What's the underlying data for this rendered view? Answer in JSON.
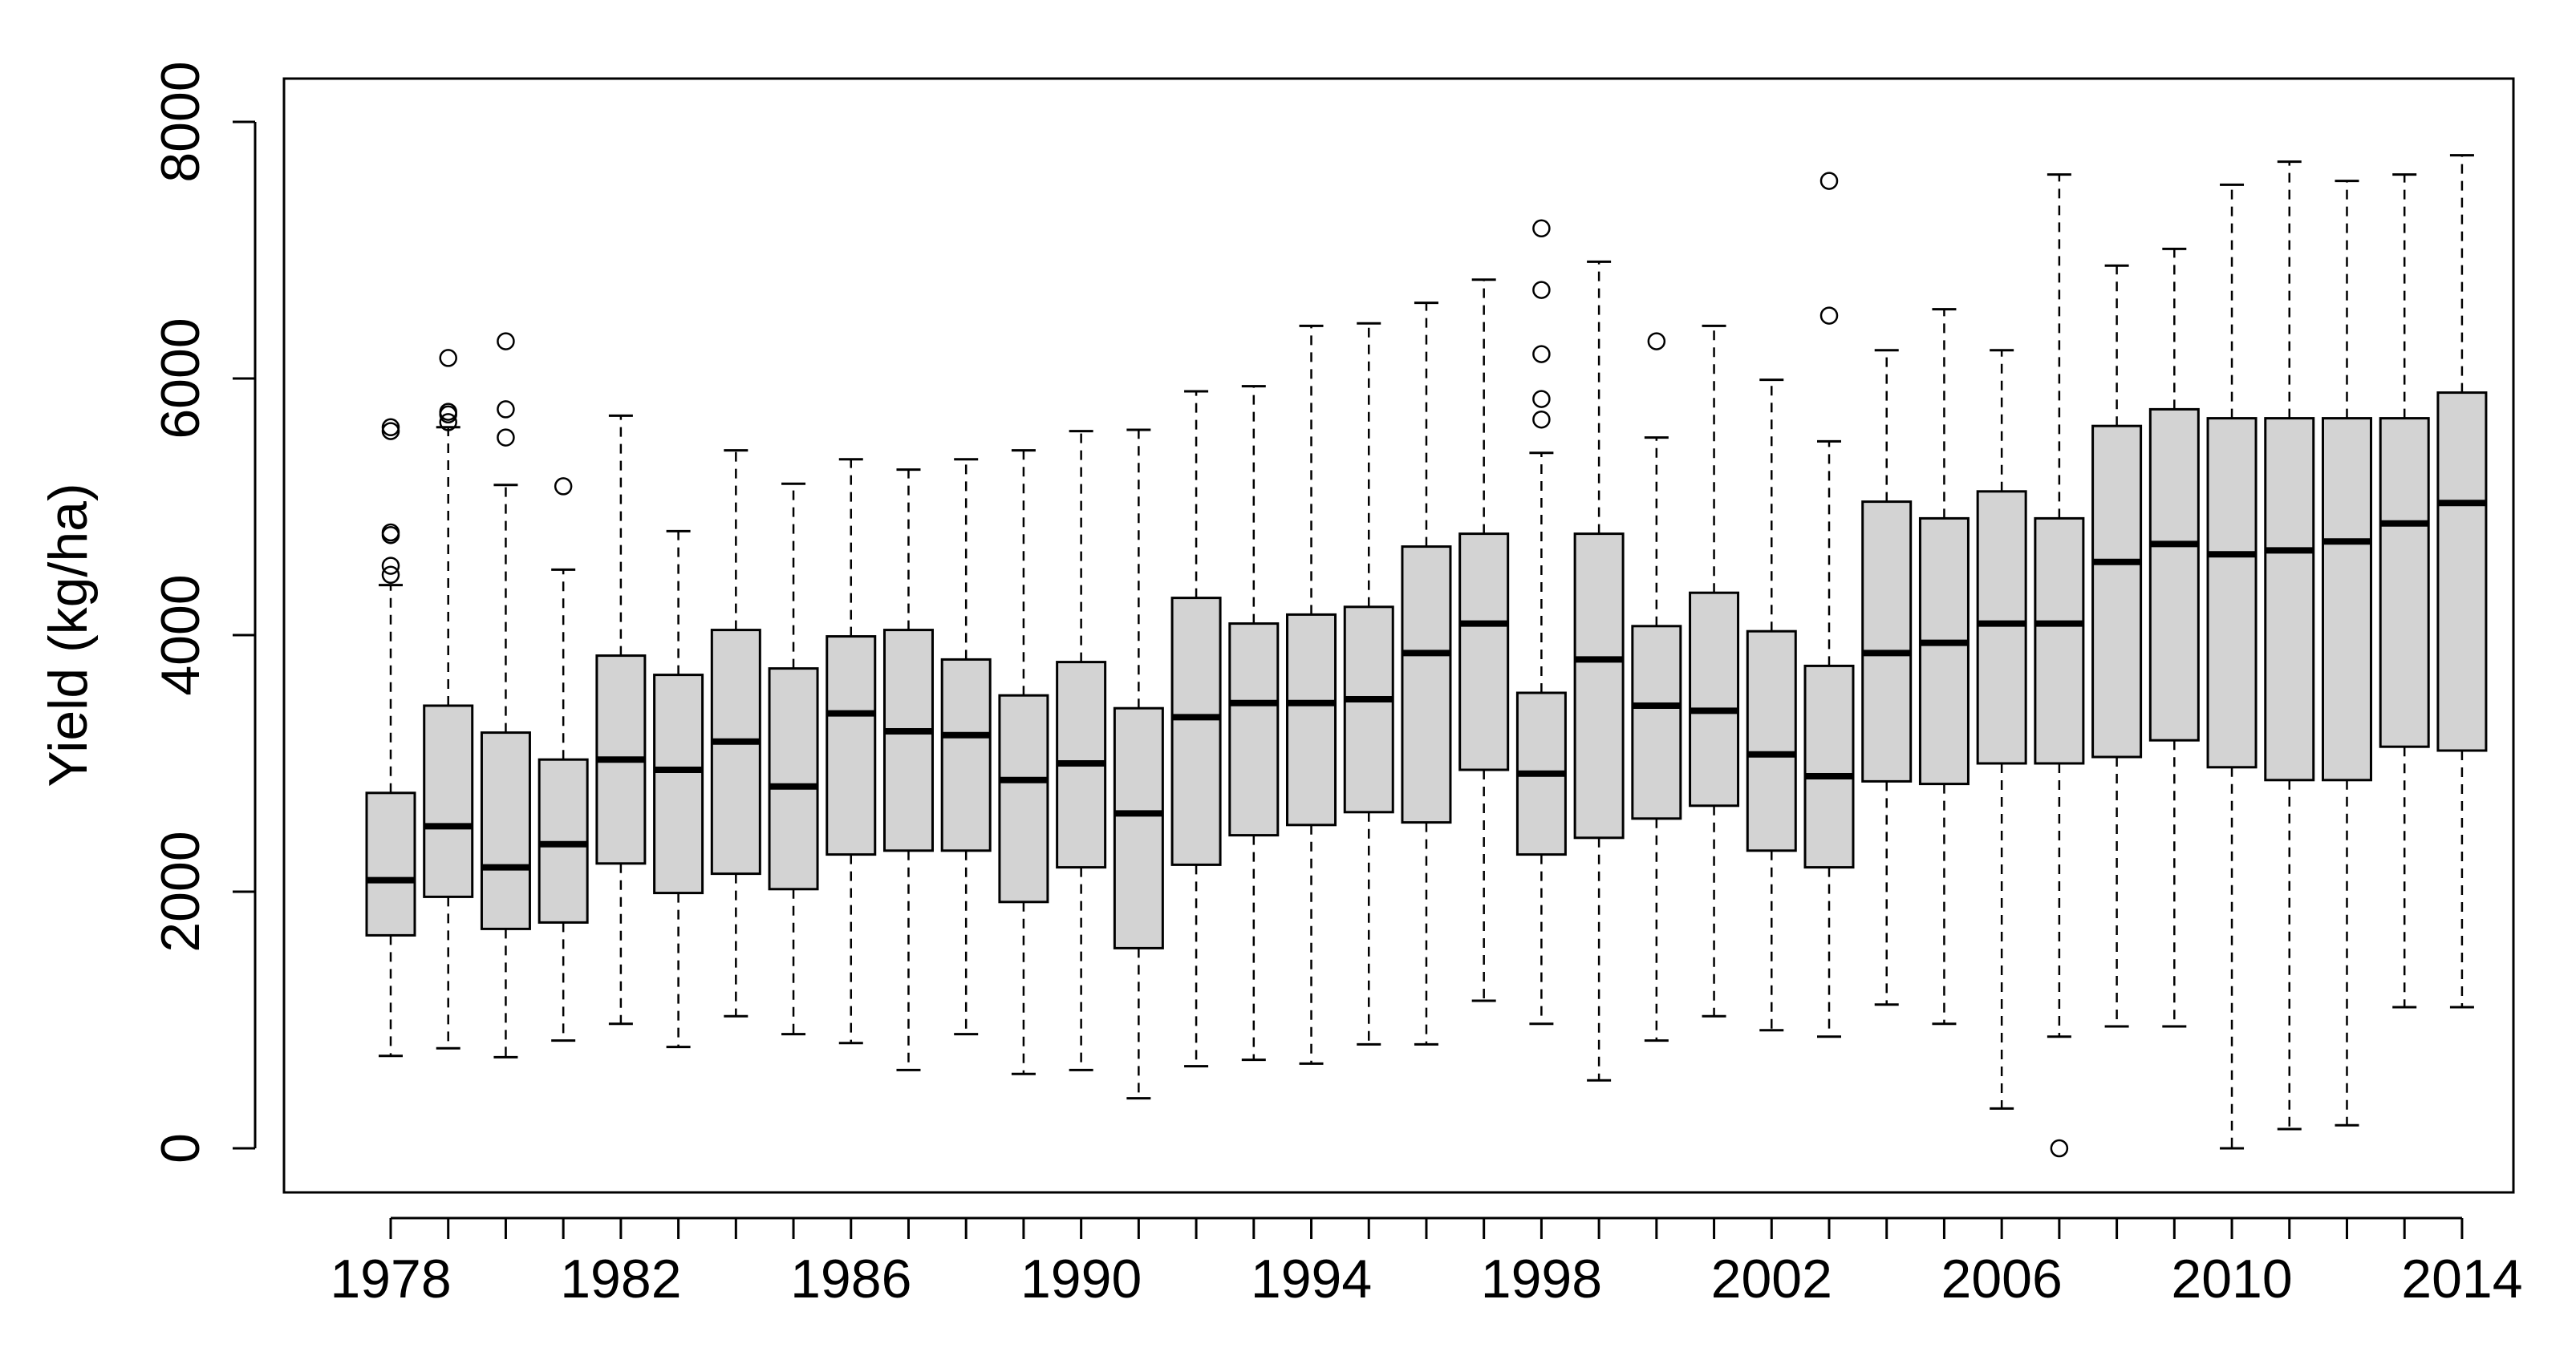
{
  "chart_data": {
    "type": "boxplot",
    "title": "",
    "xlabel": "",
    "ylabel": "Yield (kg/ha)",
    "ylim": [
      -300,
      8300
    ],
    "y_ticks": [
      0,
      2000,
      4000,
      6000,
      8000
    ],
    "x_tick_labels": [
      "1978",
      "1982",
      "1986",
      "1990",
      "1994",
      "1998",
      "2002",
      "2006",
      "2010",
      "2014"
    ],
    "box_fill": "#d3d3d3",
    "grid": false,
    "boxes": [
      {
        "year": 1978,
        "low": 720,
        "q1": 1660,
        "median": 2090,
        "q3": 2770,
        "high": 4390,
        "outliers": [
          4470,
          4540,
          4780,
          4800,
          5590,
          5620
        ]
      },
      {
        "year": 1979,
        "low": 780,
        "q1": 1960,
        "median": 2510,
        "q3": 3450,
        "high": 5620,
        "outliers": [
          5660,
          5720,
          5740,
          6160
        ]
      },
      {
        "year": 1980,
        "low": 710,
        "q1": 1710,
        "median": 2190,
        "q3": 3240,
        "high": 5170,
        "outliers": [
          5540,
          5760,
          6290
        ]
      },
      {
        "year": 1981,
        "low": 840,
        "q1": 1760,
        "median": 2370,
        "q3": 3030,
        "high": 4510,
        "outliers": [
          5160
        ]
      },
      {
        "year": 1982,
        "low": 970,
        "q1": 2220,
        "median": 3030,
        "q3": 3840,
        "high": 5710,
        "outliers": []
      },
      {
        "year": 1983,
        "low": 790,
        "q1": 1990,
        "median": 2950,
        "q3": 3690,
        "high": 4810,
        "outliers": []
      },
      {
        "year": 1984,
        "low": 1030,
        "q1": 2140,
        "median": 3170,
        "q3": 4040,
        "high": 5440,
        "outliers": []
      },
      {
        "year": 1985,
        "low": 890,
        "q1": 2020,
        "median": 2820,
        "q3": 3740,
        "high": 5180,
        "outliers": []
      },
      {
        "year": 1986,
        "low": 820,
        "q1": 2290,
        "median": 3390,
        "q3": 3990,
        "high": 5370,
        "outliers": []
      },
      {
        "year": 1987,
        "low": 610,
        "q1": 2320,
        "median": 3250,
        "q3": 4040,
        "high": 5290,
        "outliers": []
      },
      {
        "year": 1988,
        "low": 890,
        "q1": 2320,
        "median": 3220,
        "q3": 3810,
        "high": 5370,
        "outliers": []
      },
      {
        "year": 1989,
        "low": 580,
        "q1": 1920,
        "median": 2870,
        "q3": 3530,
        "high": 5440,
        "outliers": []
      },
      {
        "year": 1990,
        "low": 610,
        "q1": 2190,
        "median": 3000,
        "q3": 3790,
        "high": 5590,
        "outliers": []
      },
      {
        "year": 1991,
        "low": 390,
        "q1": 1560,
        "median": 2610,
        "q3": 3430,
        "high": 5600,
        "outliers": []
      },
      {
        "year": 1992,
        "low": 640,
        "q1": 2210,
        "median": 3360,
        "q3": 4290,
        "high": 5900,
        "outliers": []
      },
      {
        "year": 1993,
        "low": 690,
        "q1": 2440,
        "median": 3470,
        "q3": 4090,
        "high": 5940,
        "outliers": []
      },
      {
        "year": 1994,
        "low": 660,
        "q1": 2520,
        "median": 3470,
        "q3": 4160,
        "high": 6410,
        "outliers": []
      },
      {
        "year": 1995,
        "low": 810,
        "q1": 2620,
        "median": 3500,
        "q3": 4220,
        "high": 6430,
        "outliers": []
      },
      {
        "year": 1996,
        "low": 810,
        "q1": 2540,
        "median": 3860,
        "q3": 4690,
        "high": 6590,
        "outliers": []
      },
      {
        "year": 1997,
        "low": 1150,
        "q1": 2950,
        "median": 4090,
        "q3": 4790,
        "high": 6770,
        "outliers": []
      },
      {
        "year": 1998,
        "low": 970,
        "q1": 2290,
        "median": 2920,
        "q3": 3550,
        "high": 5420,
        "outliers": [
          5680,
          5840,
          6190,
          6690,
          7170
        ]
      },
      {
        "year": 1999,
        "low": 530,
        "q1": 2420,
        "median": 3810,
        "q3": 4790,
        "high": 6910,
        "outliers": []
      },
      {
        "year": 2000,
        "low": 840,
        "q1": 2570,
        "median": 3450,
        "q3": 4070,
        "high": 5540,
        "outliers": [
          6290
        ]
      },
      {
        "year": 2001,
        "low": 1030,
        "q1": 2670,
        "median": 3410,
        "q3": 4330,
        "high": 6410,
        "outliers": []
      },
      {
        "year": 2002,
        "low": 920,
        "q1": 2320,
        "median": 3070,
        "q3": 4030,
        "high": 5990,
        "outliers": []
      },
      {
        "year": 2003,
        "low": 870,
        "q1": 2190,
        "median": 2900,
        "q3": 3760,
        "high": 5510,
        "outliers": [
          6490,
          7540
        ]
      },
      {
        "year": 2004,
        "low": 1120,
        "q1": 2860,
        "median": 3860,
        "q3": 5040,
        "high": 6220,
        "outliers": []
      },
      {
        "year": 2005,
        "low": 970,
        "q1": 2840,
        "median": 3940,
        "q3": 4910,
        "high": 6540,
        "outliers": []
      },
      {
        "year": 2006,
        "low": 310,
        "q1": 3000,
        "median": 4090,
        "q3": 5120,
        "high": 6220,
        "outliers": []
      },
      {
        "year": 2007,
        "low": 870,
        "q1": 3000,
        "median": 4090,
        "q3": 4910,
        "high": 7590,
        "outliers": [
          0
        ]
      },
      {
        "year": 2008,
        "low": 950,
        "q1": 3050,
        "median": 4570,
        "q3": 5630,
        "high": 6880,
        "outliers": []
      },
      {
        "year": 2009,
        "low": 950,
        "q1": 3180,
        "median": 4710,
        "q3": 5760,
        "high": 7010,
        "outliers": []
      },
      {
        "year": 2010,
        "low": 0,
        "q1": 2970,
        "median": 4630,
        "q3": 5690,
        "high": 7510,
        "outliers": []
      },
      {
        "year": 2011,
        "low": 150,
        "q1": 2870,
        "median": 4660,
        "q3": 5690,
        "high": 7690,
        "outliers": []
      },
      {
        "year": 2012,
        "low": 180,
        "q1": 2870,
        "median": 4730,
        "q3": 5690,
        "high": 7540,
        "outliers": []
      },
      {
        "year": 2013,
        "low": 1100,
        "q1": 3130,
        "median": 4870,
        "q3": 5690,
        "high": 7590,
        "outliers": []
      },
      {
        "year": 2014,
        "low": 1100,
        "q1": 3100,
        "median": 5030,
        "q3": 5890,
        "high": 7740,
        "outliers": []
      }
    ]
  }
}
